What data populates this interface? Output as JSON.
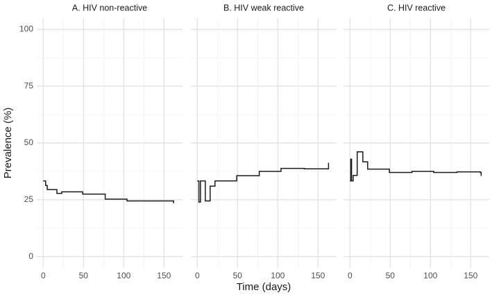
{
  "chart_data": [
    {
      "type": "line",
      "title": "A. HIV non-reactive",
      "y_label": "Prevalence (%)",
      "x": [
        0,
        3,
        5,
        10,
        17,
        23,
        49,
        77,
        104,
        160,
        162
      ],
      "series": [
        {
          "color": "#1a1a1a",
          "values": [
            33.3,
            31.3,
            29.5,
            29.5,
            27.8,
            28.5,
            27.5,
            25.3,
            24.5,
            24.5,
            23.5
          ]
        }
      ],
      "xlim": [
        -8,
        173
      ],
      "ylim": [
        -5,
        105
      ],
      "xticks": [
        0,
        50,
        100,
        150
      ],
      "yticks": [
        0,
        25,
        50,
        75,
        100
      ],
      "grid": true,
      "step": true
    },
    {
      "type": "line",
      "title": "B. HIV weak reactive",
      "x_label": "Time (days)",
      "x": [
        0,
        2,
        4,
        10,
        16,
        22,
        49,
        77,
        104,
        133,
        162,
        163
      ],
      "series": [
        {
          "color": "#1a1a1a",
          "values": [
            33.3,
            24,
            33.3,
            24.5,
            31,
            33.3,
            35.6,
            37.5,
            38.8,
            38.6,
            38.6,
            41.3
          ]
        }
      ],
      "xlim": [
        -8,
        173
      ],
      "ylim": [
        -5,
        105
      ],
      "xticks": [
        0,
        50,
        100,
        150
      ],
      "yticks": [
        0,
        25,
        50,
        75,
        100
      ],
      "grid": true,
      "step": true
    },
    {
      "type": "line",
      "title": "C. HIV reactive",
      "x": [
        0,
        1,
        2,
        4,
        9,
        16,
        22,
        49,
        77,
        104,
        133,
        162,
        163
      ],
      "series": [
        {
          "color": "#1a1a1a",
          "values": [
            33.3,
            42.9,
            33.3,
            35.7,
            46.1,
            41.7,
            38.5,
            37,
            37.5,
            37,
            37.3,
            37,
            35.5
          ]
        }
      ],
      "xlim": [
        -8,
        173
      ],
      "ylim": [
        -5,
        105
      ],
      "xticks": [
        0,
        50,
        100,
        150
      ],
      "yticks": [
        0,
        25,
        50,
        75,
        100
      ],
      "grid": true,
      "step": true
    }
  ]
}
